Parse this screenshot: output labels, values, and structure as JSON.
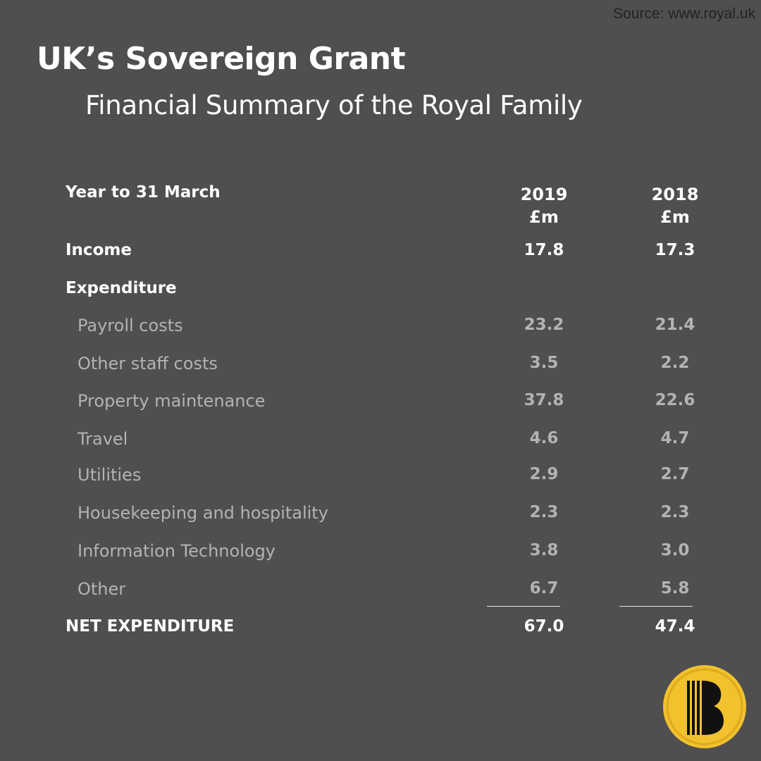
{
  "source": "Source: www.royal.uk",
  "title": "UK’s Sovereign Grant",
  "subtitle": "Financial Summary of the Royal Family",
  "colors": {
    "background": "#4f4f4f",
    "primary_text": "#ffffff",
    "muted_text": "#b3b3b3",
    "logo_yellow": "#f2c12e"
  },
  "table": {
    "header": {
      "label": "Year to 31 March",
      "col1_year": "2019",
      "col1_unit": "£m",
      "col2_year": "2018",
      "col2_unit": "£m"
    },
    "income": {
      "label": "Income",
      "v2019": "17.8",
      "v2018": "17.3"
    },
    "expenditure_label": "Expenditure",
    "items": [
      {
        "label": "Payroll costs",
        "v2019": "23.2",
        "v2018": "21.4"
      },
      {
        "label": "Other staff costs",
        "v2019": "3.5",
        "v2018": "2.2"
      },
      {
        "label": "Property maintenance",
        "v2019": "37.8",
        "v2018": "22.6"
      },
      {
        "label": "Travel",
        "v2019": "4.6",
        "v2018": "4.7"
      },
      {
        "label": "Utilities",
        "v2019": "2.9",
        "v2018": "2.7"
      },
      {
        "label": "Housekeeping and hospitality",
        "v2019": "2.3",
        "v2018": "2.3"
      },
      {
        "label": "Information Technology",
        "v2019": "3.8",
        "v2018": "3.0"
      },
      {
        "label": "Other",
        "v2019": "6.7",
        "v2018": "5.8"
      }
    ],
    "net": {
      "label": "NET EXPENDITURE",
      "v2019": "67.0",
      "v2018": "47.4"
    }
  },
  "logo": {
    "icon": "brand-b-logo-icon"
  }
}
